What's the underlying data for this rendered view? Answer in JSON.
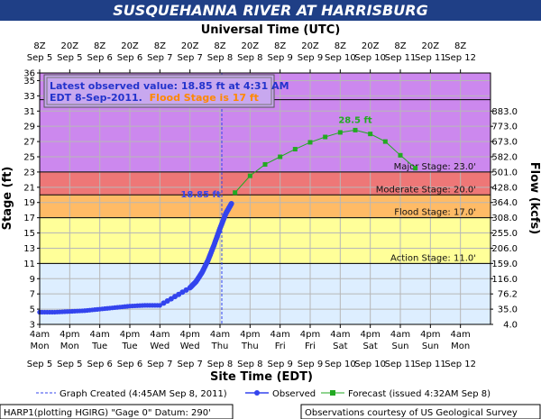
{
  "header": {
    "title": "SUSQUEHANNA RIVER AT HARRISBURG",
    "top_axis_title": "Universal Time (UTC)"
  },
  "info_box": {
    "line1": "Latest observed value: 18.85 ft at 4:31 AM",
    "line2_prefix": "EDT 8-Sep-2011.",
    "line2_flood": "Flood Stage is 17 ft"
  },
  "colors": {
    "title_bg": "#1f3f86",
    "major": "#cc88ee",
    "moderate": "#ee7777",
    "flood": "#ffbb66",
    "action": "#ffff99",
    "normal": "#ddeeff",
    "observed": "#3344ee",
    "forecast": "#22aa22",
    "flood_text": "#ff8800"
  },
  "chart_data": {
    "type": "line",
    "title": "SUSQUEHANNA RIVER AT HARRISBURG",
    "xlabel": "Site Time (EDT)",
    "ylabel": "Stage (ft)",
    "y2label": "Flow (kcfs)",
    "ylim": [
      3,
      36
    ],
    "xlim_days": [
      0,
      7.5
    ],
    "y_ticks": [
      3,
      5,
      7,
      9,
      11,
      13,
      15,
      17,
      19,
      21,
      23,
      25,
      27,
      29,
      31,
      33,
      35,
      36
    ],
    "y2_ticks": [
      {
        "stage": 3,
        "label": "4.0"
      },
      {
        "stage": 5,
        "label": "35.0"
      },
      {
        "stage": 7,
        "label": "76.2"
      },
      {
        "stage": 9,
        "label": "116.0"
      },
      {
        "stage": 11,
        "label": "159.0"
      },
      {
        "stage": 13,
        "label": "206.0"
      },
      {
        "stage": 15,
        "label": "255.0"
      },
      {
        "stage": 17,
        "label": "308.0"
      },
      {
        "stage": 19,
        "label": "364.0"
      },
      {
        "stage": 21,
        "label": "428.0"
      },
      {
        "stage": 23,
        "label": "501.0"
      },
      {
        "stage": 25,
        "label": "582.0"
      },
      {
        "stage": 27,
        "label": "673.0"
      },
      {
        "stage": 29,
        "label": "773.0"
      },
      {
        "stage": 31,
        "label": "883.0"
      }
    ],
    "bottom_ticks": [
      {
        "t": "4am",
        "d": "Mon",
        "date": "Sep 5"
      },
      {
        "t": "4pm",
        "d": "Mon",
        "date": "Sep 5"
      },
      {
        "t": "4am",
        "d": "Tue",
        "date": "Sep 6"
      },
      {
        "t": "4pm",
        "d": "Tue",
        "date": "Sep 6"
      },
      {
        "t": "4am",
        "d": "Wed",
        "date": "Sep 7"
      },
      {
        "t": "4pm",
        "d": "Wed",
        "date": "Sep 7"
      },
      {
        "t": "4am",
        "d": "Thu",
        "date": "Sep 8"
      },
      {
        "t": "4pm",
        "d": "Thu",
        "date": "Sep 8"
      },
      {
        "t": "4am",
        "d": "Fri",
        "date": "Sep 9"
      },
      {
        "t": "4pm",
        "d": "Fri",
        "date": "Sep 9"
      },
      {
        "t": "4am",
        "d": "Sat",
        "date": "Sep 10"
      },
      {
        "t": "4pm",
        "d": "Sat",
        "date": "Sep 10"
      },
      {
        "t": "4am",
        "d": "Sun",
        "date": "Sep 11"
      },
      {
        "t": "4pm",
        "d": "Sun",
        "date": "Sep 11"
      },
      {
        "t": "4am",
        "d": "Mon",
        "date": "Sep 12"
      }
    ],
    "top_ticks": [
      {
        "t": "8Z",
        "date": "Sep 5"
      },
      {
        "t": "20Z",
        "date": "Sep 5"
      },
      {
        "t": "8Z",
        "date": "Sep 6"
      },
      {
        "t": "20Z",
        "date": "Sep 6"
      },
      {
        "t": "8Z",
        "date": "Sep 7"
      },
      {
        "t": "20Z",
        "date": "Sep 7"
      },
      {
        "t": "8Z",
        "date": "Sep 8"
      },
      {
        "t": "20Z",
        "date": "Sep 8"
      },
      {
        "t": "8Z",
        "date": "Sep 9"
      },
      {
        "t": "20Z",
        "date": "Sep 9"
      },
      {
        "t": "8Z",
        "date": "Sep 10"
      },
      {
        "t": "20Z",
        "date": "Sep 10"
      },
      {
        "t": "8Z",
        "date": "Sep 11"
      },
      {
        "t": "20Z",
        "date": "Sep 11"
      },
      {
        "t": "8Z",
        "date": "Sep 12"
      }
    ],
    "stages": [
      {
        "name": "Major Stage: 23.0'",
        "value": 23,
        "key": "major"
      },
      {
        "name": "Moderate Stage: 20.0'",
        "value": 20,
        "key": "moderate"
      },
      {
        "name": "Flood Stage: 17.0'",
        "value": 17,
        "key": "flood"
      },
      {
        "name": "Action Stage: 11.0'",
        "value": 11,
        "key": "action"
      }
    ],
    "top_reference_line": 32.5,
    "graph_created_x": 3.03,
    "observed_label": "18.85 ft",
    "crest_label": "28.5 ft",
    "series": [
      {
        "name": "Observed",
        "points": [
          [
            0.0,
            4.6
          ],
          [
            0.25,
            4.6
          ],
          [
            0.5,
            4.7
          ],
          [
            0.75,
            4.8
          ],
          [
            1.0,
            5.0
          ],
          [
            1.25,
            5.2
          ],
          [
            1.5,
            5.4
          ],
          [
            1.75,
            5.5
          ],
          [
            2.0,
            5.5
          ],
          [
            2.5,
            7.8
          ],
          [
            2.6,
            8.6
          ],
          [
            2.7,
            9.8
          ],
          [
            2.8,
            11.4
          ],
          [
            2.9,
            13.4
          ],
          [
            3.0,
            15.6
          ],
          [
            3.1,
            17.6
          ],
          [
            3.19,
            18.85
          ]
        ]
      },
      {
        "name": "Forecast (issued 4:32AM Sep 8)",
        "points": [
          [
            3.25,
            20.3
          ],
          [
            3.5,
            22.5
          ],
          [
            3.75,
            24.0
          ],
          [
            4.0,
            25.0
          ],
          [
            4.25,
            26.0
          ],
          [
            4.5,
            26.9
          ],
          [
            4.75,
            27.6
          ],
          [
            5.0,
            28.2
          ],
          [
            5.25,
            28.5
          ],
          [
            5.5,
            28.0
          ],
          [
            5.75,
            27.0
          ],
          [
            6.0,
            25.2
          ],
          [
            6.25,
            23.5
          ]
        ]
      }
    ]
  },
  "legend": {
    "graph_created": "Graph Created (4:45AM Sep 8, 2011)",
    "observed": "Observed",
    "forecast": "Forecast (issued 4:32AM Sep 8)"
  },
  "footer": {
    "left": "HARP1(plotting HGIRG) \"Gage 0\" Datum: 290'",
    "right": "Observations courtesy of US Geological Survey"
  }
}
